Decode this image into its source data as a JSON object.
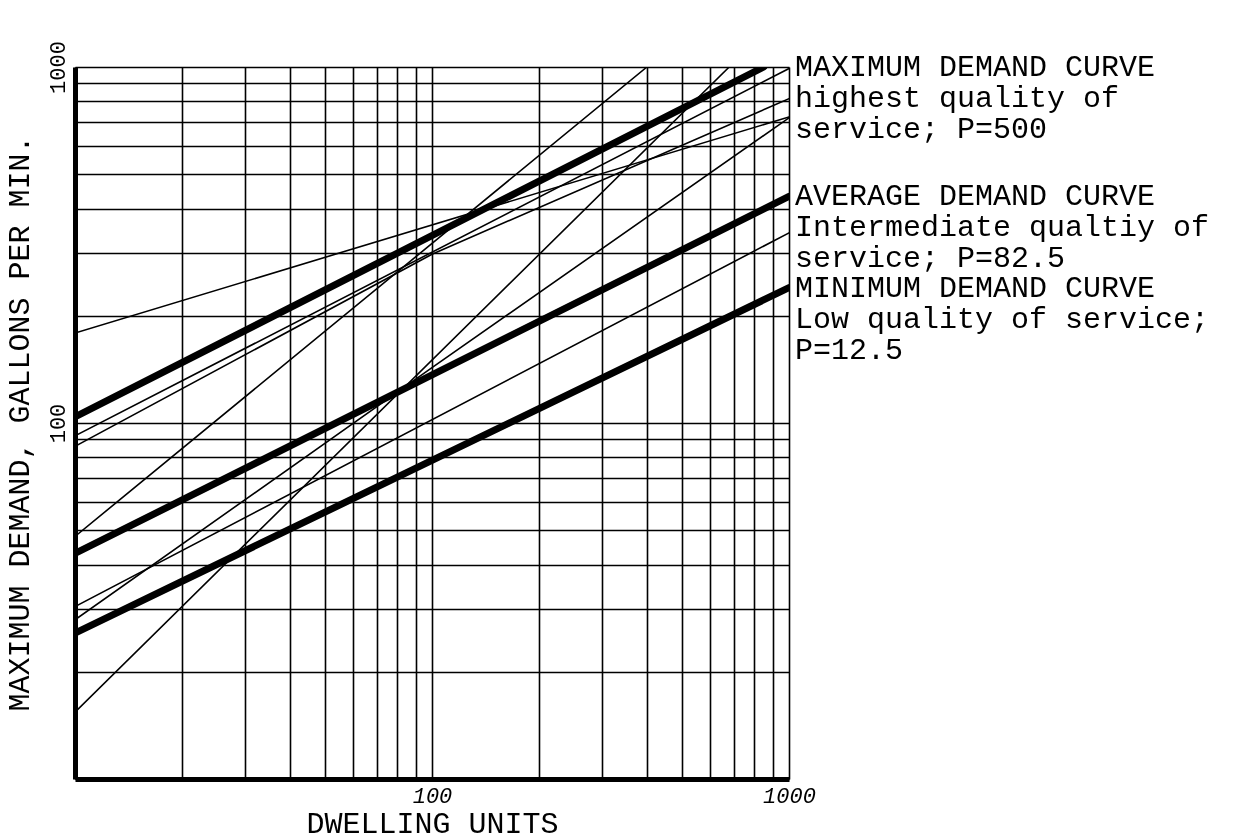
{
  "chart_data": {
    "type": "line",
    "xlabel": "DWELLING UNITS",
    "ylabel": "MAXIMUM DEMAND, GALLONS PER MIN.",
    "log": "xy",
    "grid": true,
    "xlim": [
      10,
      1000
    ],
    "ylim": [
      10,
      1000
    ],
    "xticks": [
      {
        "value": 10,
        "label": null
      },
      {
        "value": 20,
        "label": null
      },
      {
        "value": 30,
        "label": null
      },
      {
        "value": 40,
        "label": null
      },
      {
        "value": 50,
        "label": null
      },
      {
        "value": 60,
        "label": null
      },
      {
        "value": 70,
        "label": null
      },
      {
        "value": 80,
        "label": null
      },
      {
        "value": 90,
        "label": null
      },
      100,
      {
        "value": 200,
        "label": null
      },
      {
        "value": 300,
        "label": null
      },
      {
        "value": 400,
        "label": null
      },
      {
        "value": 500,
        "label": null
      },
      {
        "value": 600,
        "label": null
      },
      {
        "value": 700,
        "label": null
      },
      {
        "value": 800,
        "label": null
      },
      {
        "value": 900,
        "label": null
      },
      1000
    ],
    "yticks": [
      {
        "value": 10,
        "label": null
      },
      {
        "value": 20,
        "label": null
      },
      {
        "value": 30,
        "label": null
      },
      {
        "value": 40,
        "label": null
      },
      {
        "value": 50,
        "label": null
      },
      {
        "value": 60,
        "label": null
      },
      {
        "value": 70,
        "label": null
      },
      {
        "value": 80,
        "label": null
      },
      {
        "value": 90,
        "label": null
      },
      100,
      {
        "value": 200,
        "label": null
      },
      {
        "value": 300,
        "label": null
      },
      {
        "value": 400,
        "label": null
      },
      {
        "value": 500,
        "label": null
      },
      {
        "value": 600,
        "label": null
      },
      {
        "value": 700,
        "label": null
      },
      {
        "value": 800,
        "label": null
      },
      {
        "value": 900,
        "label": null
      },
      1000
    ],
    "series": [
      {
        "color": "#000000",
        "x": [
          10,
          1000
        ],
        "values": [
          179,
          724
        ]
      },
      {
        "color": "#000000",
        "x": [
          10,
          1000
        ],
        "values": [
          92,
          990
        ]
      },
      {
        "color": "#000000",
        "x": [
          10,
          100,
          1000
        ],
        "values": [
          86,
          298,
          815
        ]
      },
      {
        "color": "#000000",
        "x": [
          10,
          400
        ],
        "values": [
          48,
          1000
        ]
      },
      {
        "color": "#000000",
        "x": [
          10,
          100,
          1000
        ],
        "values": [
          28,
          143,
          720
        ]
      },
      {
        "color": "#000000",
        "x": [
          10,
          1000
        ],
        "values": [
          30.5,
          342
        ]
      },
      {
        "color": "#000000",
        "x": [
          10,
          680
        ],
        "values": [
          15.4,
          1000
        ]
      },
      {
        "name": "MAXIMUM DEMAND CURVE\nhighest quality of\nservice; P=500",
        "color": "#000000",
        "x": [
          10,
          850
        ],
        "values": [
          104,
          1000
        ]
      },
      {
        "name": "AVERAGE DEMAND CURVE\nIntermediate qualtiy of\nservice; P=82.5",
        "color": "#000000",
        "x": [
          10,
          1000
        ],
        "values": [
          43,
          433
        ]
      },
      {
        "name": "MINIMUM DEMAND CURVE\nLow quality of service;\nP=12.5",
        "color": "#000000",
        "x": [
          10,
          1000
        ],
        "values": [
          25.7,
          240
        ]
      }
    ]
  }
}
